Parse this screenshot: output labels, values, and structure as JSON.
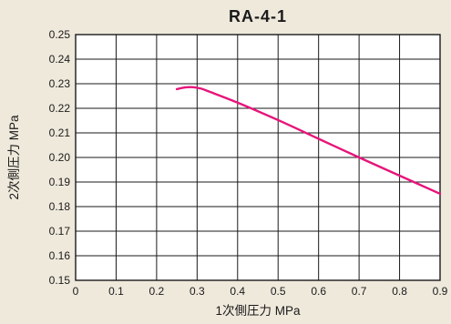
{
  "chart_data": {
    "type": "line",
    "title": "RA-4-1",
    "xlabel": "1次側圧力 MPa",
    "ylabel": "2次側圧力 MPa",
    "xlim": [
      0,
      0.9
    ],
    "ylim": [
      0.15,
      0.25
    ],
    "x_ticks": [
      "0",
      "0.1",
      "0.2",
      "0.3",
      "0.4",
      "0.5",
      "0.6",
      "0.7",
      "0.8",
      "0.9"
    ],
    "y_ticks": [
      "0.15",
      "0.16",
      "0.17",
      "0.18",
      "0.19",
      "0.20",
      "0.21",
      "0.22",
      "0.23",
      "0.24",
      "0.25"
    ],
    "grid": true,
    "legend": "none",
    "series": [
      {
        "color": "#e6157a",
        "x": [
          0.25,
          0.27,
          0.29,
          0.31,
          0.33,
          0.4,
          0.5,
          0.6,
          0.7,
          0.8,
          0.9
        ],
        "y": [
          0.2278,
          0.2285,
          0.2286,
          0.228,
          0.2268,
          0.2223,
          0.2152,
          0.2076,
          0.2,
          0.1926,
          0.1852
        ]
      }
    ]
  }
}
